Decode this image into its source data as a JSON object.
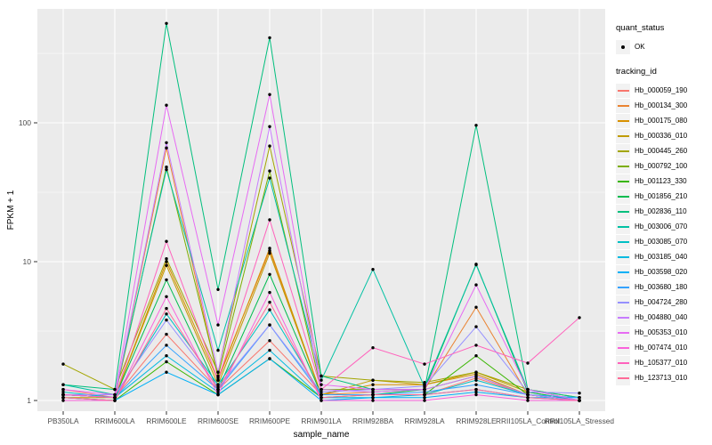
{
  "figure": {
    "background": "#FFFFFF",
    "panel_background": "#EBEBEB",
    "gridline_color": "#FFFFFF",
    "tick_color": "#333333",
    "tick_label_color": "#4D4D4D",
    "text_color": "#000000",
    "point_color": "#000000",
    "legend_key_background": "#F2F2F2"
  },
  "chart_data": {
    "type": "line",
    "title": "",
    "xlabel": "sample_name",
    "ylabel": "FPKM + 1",
    "y_scale": "log10",
    "y_ticks": [
      1,
      10,
      100
    ],
    "y_minor_ticks": [
      3.162,
      31.62,
      316.2
    ],
    "ylim": [
      0.84,
      660
    ],
    "legend_position": "right",
    "grid": true,
    "categories": [
      "PB350LA",
      "RRIM600LA",
      "RRIM600LE",
      "RRIM600SE",
      "RRIM600PE",
      "RRIM901LA",
      "RRIM928BA",
      "RRIM928LA",
      "RRIM928LE",
      "RRII105LA_Control",
      "RRII105LA_Stressed"
    ],
    "series": [
      {
        "name": "Hb_000059_190",
        "color": "#F8766D",
        "values": [
          1.2,
          1.05,
          3.0,
          1.2,
          2.7,
          1.1,
          1.1,
          1.1,
          1.45,
          1.1,
          1.0
        ]
      },
      {
        "name": "Hb_000134_300",
        "color": "#EA8331",
        "values": [
          1.1,
          1.05,
          66,
          1.45,
          12.0,
          1.1,
          1.15,
          1.2,
          4.7,
          1.1,
          1.0
        ]
      },
      {
        "name": "Hb_000175_080",
        "color": "#D89000",
        "values": [
          1.1,
          1.05,
          10.0,
          1.4,
          12.5,
          1.1,
          1.3,
          1.3,
          1.55,
          1.1,
          1.0
        ]
      },
      {
        "name": "Hb_000336_010",
        "color": "#C09B00",
        "values": [
          1.05,
          1.05,
          9.4,
          1.3,
          11.5,
          1.1,
          1.4,
          1.3,
          1.6,
          1.15,
          1.0
        ]
      },
      {
        "name": "Hb_000445_260",
        "color": "#A3A500",
        "values": [
          1.83,
          1.2,
          10.5,
          1.6,
          68,
          1.5,
          1.4,
          1.35,
          1.6,
          1.2,
          1.05
        ]
      },
      {
        "name": "Hb_000792_100",
        "color": "#7CAE00",
        "values": [
          1.1,
          1.05,
          48,
          1.5,
          45,
          1.2,
          1.2,
          1.2,
          1.5,
          1.1,
          1.0
        ]
      },
      {
        "name": "Hb_001123_330",
        "color": "#39B600",
        "values": [
          1.05,
          1.0,
          1.9,
          1.1,
          2.0,
          1.05,
          1.1,
          1.1,
          2.1,
          1.1,
          1.0
        ]
      },
      {
        "name": "Hb_001856_210",
        "color": "#00BB4E",
        "values": [
          1.1,
          1.05,
          7.4,
          1.2,
          8.1,
          1.1,
          1.1,
          1.2,
          9.6,
          1.15,
          1.0
        ]
      },
      {
        "name": "Hb_002836_110",
        "color": "#00BF7D",
        "values": [
          1.3,
          1.2,
          520,
          6.3,
          410,
          1.5,
          1.2,
          1.2,
          96,
          1.2,
          1.05
        ]
      },
      {
        "name": "Hb_003006_070",
        "color": "#00C1A3",
        "values": [
          1.3,
          1.1,
          46,
          2.3,
          40,
          1.4,
          8.8,
          1.25,
          9.5,
          1.2,
          1.0
        ]
      },
      {
        "name": "Hb_003085_070",
        "color": "#00BFC4",
        "values": [
          1.15,
          1.05,
          4.2,
          1.3,
          4.5,
          1.1,
          1.1,
          1.1,
          1.4,
          1.1,
          1.0
        ]
      },
      {
        "name": "Hb_003185_040",
        "color": "#00BAE0",
        "values": [
          1.1,
          1.05,
          2.1,
          1.15,
          2.3,
          1.05,
          1.05,
          1.1,
          1.2,
          1.05,
          1.0
        ]
      },
      {
        "name": "Hb_003598_020",
        "color": "#00B0F6",
        "values": [
          1.05,
          1.0,
          1.6,
          1.1,
          2.0,
          1.0,
          1.05,
          1.05,
          1.15,
          1.05,
          1.05
        ]
      },
      {
        "name": "Hb_003680_180",
        "color": "#35A2FF",
        "values": [
          1.1,
          1.05,
          2.5,
          1.2,
          3.5,
          1.1,
          1.1,
          1.15,
          1.3,
          1.1,
          1.05
        ]
      },
      {
        "name": "Hb_004724_280",
        "color": "#9590FF",
        "values": [
          1.1,
          1.1,
          3.8,
          1.25,
          3.5,
          1.15,
          1.2,
          1.27,
          3.4,
          1.15,
          1.13
        ]
      },
      {
        "name": "Hb_004880_040",
        "color": "#C77CFF",
        "values": [
          1.1,
          1.05,
          72,
          1.6,
          94,
          1.2,
          1.15,
          1.2,
          1.5,
          1.1,
          1.0
        ]
      },
      {
        "name": "Hb_005353_010",
        "color": "#E76BF3",
        "values": [
          1.2,
          1.1,
          134,
          3.5,
          160,
          1.3,
          1.2,
          1.2,
          6.8,
          1.2,
          1.0
        ]
      },
      {
        "name": "Hb_007474_010",
        "color": "#FA62DB",
        "values": [
          1.0,
          1.0,
          5.6,
          1.1,
          6.0,
          1.0,
          1.0,
          1.0,
          1.1,
          1.0,
          1.0
        ]
      },
      {
        "name": "Hb_105377_010",
        "color": "#FF62BC",
        "values": [
          1.1,
          1.05,
          14,
          1.4,
          20,
          1.2,
          2.4,
          1.83,
          2.5,
          1.86,
          3.95
        ]
      },
      {
        "name": "Hb_123713_010",
        "color": "#FF6A98",
        "values": [
          1.05,
          1.0,
          4.6,
          1.2,
          5.1,
          1.05,
          1.1,
          1.1,
          1.2,
          1.05,
          1.0
        ]
      }
    ],
    "legend": {
      "quant_status_title": "quant_status",
      "quant_status_items": [
        {
          "label": "OK",
          "symbol": "point"
        }
      ],
      "tracking_id_title": "tracking_id"
    }
  }
}
